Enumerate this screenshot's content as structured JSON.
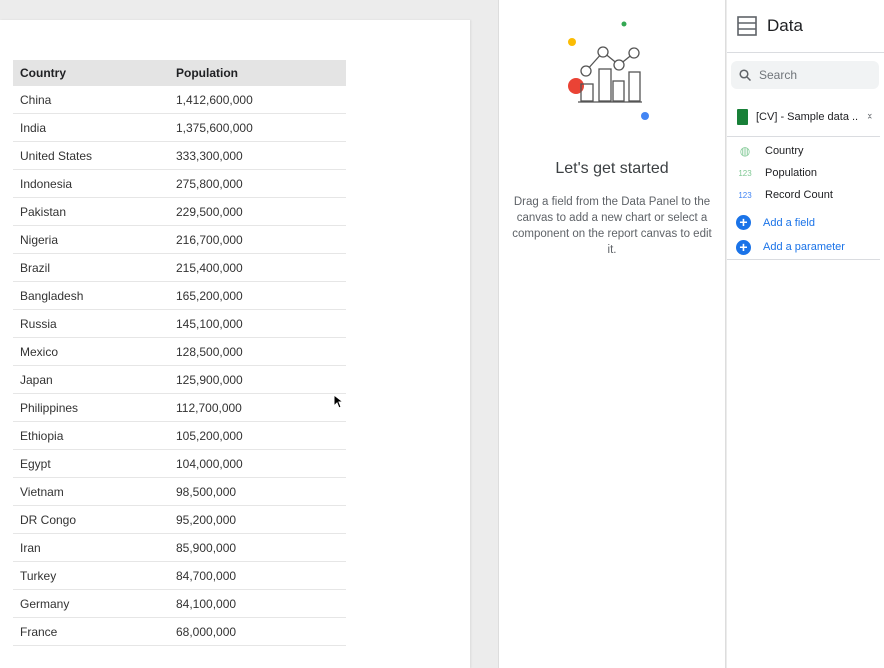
{
  "table": {
    "headers": [
      "Country",
      "Population"
    ],
    "rows": [
      [
        "China",
        "1,412,600,000"
      ],
      [
        "India",
        "1,375,600,000"
      ],
      [
        "United States",
        "333,300,000"
      ],
      [
        "Indonesia",
        "275,800,000"
      ],
      [
        "Pakistan",
        "229,500,000"
      ],
      [
        "Nigeria",
        "216,700,000"
      ],
      [
        "Brazil",
        "215,400,000"
      ],
      [
        "Bangladesh",
        "165,200,000"
      ],
      [
        "Russia",
        "145,100,000"
      ],
      [
        "Mexico",
        "128,500,000"
      ],
      [
        "Japan",
        "125,900,000"
      ],
      [
        "Philippines",
        "112,700,000"
      ],
      [
        "Ethiopia",
        "105,200,000"
      ],
      [
        "Egypt",
        "104,000,000"
      ],
      [
        "Vietnam",
        "98,500,000"
      ],
      [
        "DR Congo",
        "95,200,000"
      ],
      [
        "Iran",
        "85,900,000"
      ],
      [
        "Turkey",
        "84,700,000"
      ],
      [
        "Germany",
        "84,100,000"
      ],
      [
        "France",
        "68,000,000"
      ]
    ]
  },
  "empty_state": {
    "title": "Let's get started",
    "body": "Drag a field from the Data Panel to the canvas to add a new chart or select a component on the report canvas to edit it."
  },
  "data_panel": {
    "title": "Data",
    "search_placeholder": "Search",
    "source": "[CV] - Sample data ...",
    "fields": [
      {
        "name": "Country",
        "type_icon": "globe-icon",
        "color": "#81c995"
      },
      {
        "name": "Population",
        "type_label": "123",
        "color": "#81c995"
      },
      {
        "name": "Record Count",
        "type_label": "123",
        "color": "#4285f4"
      }
    ],
    "add_field": "Add a field",
    "add_parameter": "Add a parameter"
  }
}
